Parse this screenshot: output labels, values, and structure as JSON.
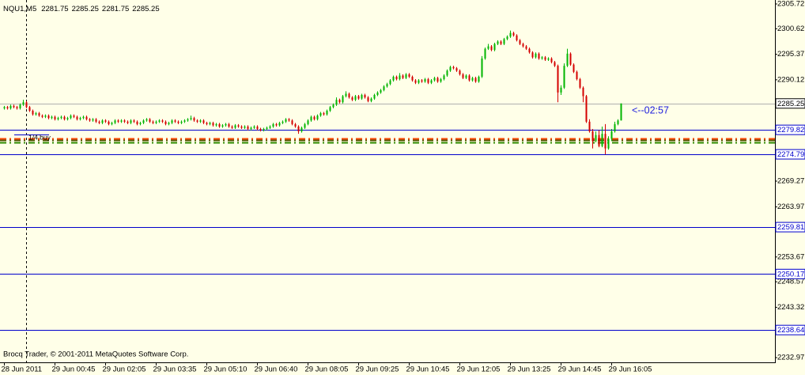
{
  "chart_data": {
    "type": "candlestick",
    "symbol": "NQU1,M5",
    "copyright": "Brocq Trader, © 2001-2011 MetaQuotes Software Corp.",
    "annotations": [
      "1/4 buy",
      "<--02:57"
    ],
    "ylim": [
      2232.97,
      2305.72
    ],
    "yticks": [
      2305.72,
      2300.62,
      2295.37,
      2290.12,
      2269.27,
      2263.97,
      2253.67,
      2248.57,
      2243.32,
      2232.97
    ],
    "levels": [
      2279.82,
      2274.79,
      2259.81,
      2250.17,
      2238.64
    ],
    "level_color": "#0000cc",
    "pivot_levels": [
      {
        "value": 2278.1,
        "color": "#ff4500"
      },
      {
        "value": 2277.75,
        "color": "#555500"
      },
      {
        "value": 2277.3,
        "color": "#2e8b00"
      }
    ],
    "up_color": "#00b400",
    "down_color": "#d40000",
    "categories": [
      "28 Jun 2011",
      null,
      null,
      null,
      null,
      null,
      null,
      null,
      null,
      null,
      null,
      null,
      null,
      null,
      null,
      null,
      "29 Jun 00:45",
      null,
      null,
      null,
      null,
      null,
      null,
      null,
      null,
      null,
      null,
      null,
      null,
      null,
      null,
      null,
      "29 Jun 02:05",
      null,
      null,
      null,
      null,
      null,
      null,
      null,
      null,
      null,
      null,
      null,
      null,
      null,
      null,
      null,
      "29 Jun 03:35",
      null,
      null,
      null,
      null,
      null,
      null,
      null,
      null,
      null,
      null,
      null,
      null,
      null,
      null,
      null,
      "29 Jun 05:10",
      null,
      null,
      null,
      null,
      null,
      null,
      null,
      null,
      null,
      null,
      null,
      null,
      null,
      null,
      null,
      "29 Jun 06:40",
      null,
      null,
      null,
      null,
      null,
      null,
      null,
      null,
      null,
      null,
      null,
      null,
      null,
      null,
      null,
      "29 Jun 08:05",
      null,
      null,
      null,
      null,
      null,
      null,
      null,
      null,
      null,
      null,
      null,
      null,
      null,
      null,
      null,
      "29 Jun 09:25",
      null,
      null,
      null,
      null,
      null,
      null,
      null,
      null,
      null,
      null,
      null,
      null,
      null,
      null,
      null,
      "29 Jun 10:45",
      null,
      null,
      null,
      null,
      null,
      null,
      null,
      null,
      null,
      null,
      null,
      null,
      null,
      null,
      null,
      "29 Jun 12:05",
      null,
      null,
      null,
      null,
      null,
      null,
      null,
      null,
      null,
      null,
      null,
      null,
      null,
      null,
      null,
      "29 Jun 13:25",
      null,
      null,
      null,
      null,
      null,
      null,
      null,
      null,
      null,
      null,
      null,
      null,
      null,
      null,
      null,
      "29 Jun 14:45",
      null,
      null,
      null,
      null,
      null,
      null,
      null,
      null,
      null,
      null,
      null,
      null,
      null,
      null,
      null,
      "29 Jun 16:05",
      null,
      null,
      null
    ],
    "ohlc": [
      [
        2284.25,
        2284.75,
        2284.0,
        2284.5
      ],
      [
        2284.5,
        2284.75,
        2284.0,
        2284.25
      ],
      [
        2284.25,
        2285.0,
        2284.0,
        2284.75
      ],
      [
        2284.75,
        2285.0,
        2284.25,
        2284.5
      ],
      [
        2284.5,
        2284.75,
        2284.0,
        2284.25
      ],
      [
        2284.25,
        2285.25,
        2284.0,
        2285.0
      ],
      [
        2285.0,
        2286.0,
        2284.75,
        2285.5
      ],
      [
        2285.5,
        2285.75,
        2284.25,
        2284.5
      ],
      [
        2284.5,
        2284.75,
        2283.5,
        2283.75
      ],
      [
        2283.75,
        2284.0,
        2282.75,
        2283.0
      ],
      [
        2283.0,
        2283.5,
        2282.75,
        2283.25
      ],
      [
        2283.25,
        2283.5,
        2282.5,
        2282.75
      ],
      [
        2282.75,
        2283.0,
        2282.25,
        2282.5
      ],
      [
        2282.5,
        2283.0,
        2282.25,
        2282.75
      ],
      [
        2282.75,
        2283.0,
        2282.0,
        2282.25
      ],
      [
        2282.25,
        2282.75,
        2282.0,
        2282.5
      ],
      [
        2282.5,
        2282.75,
        2281.75,
        2282.0
      ],
      [
        2282.0,
        2282.5,
        2281.75,
        2282.25
      ],
      [
        2282.25,
        2282.75,
        2282.0,
        2282.5
      ],
      [
        2282.5,
        2282.75,
        2281.75,
        2282.0
      ],
      [
        2282.0,
        2282.5,
        2281.75,
        2282.25
      ],
      [
        2282.25,
        2283.0,
        2282.0,
        2282.75
      ],
      [
        2282.75,
        2283.0,
        2282.25,
        2282.5
      ],
      [
        2282.5,
        2282.75,
        2281.75,
        2282.0
      ],
      [
        2282.0,
        2282.5,
        2281.75,
        2282.25
      ],
      [
        2282.25,
        2282.75,
        2282.0,
        2282.5
      ],
      [
        2282.5,
        2282.75,
        2281.75,
        2282.0
      ],
      [
        2282.0,
        2282.25,
        2281.5,
        2281.75
      ],
      [
        2281.75,
        2282.25,
        2281.5,
        2282.0
      ],
      [
        2282.0,
        2282.25,
        2281.25,
        2281.5
      ],
      [
        2281.5,
        2281.75,
        2281.0,
        2281.25
      ],
      [
        2281.25,
        2282.0,
        2281.0,
        2281.75
      ],
      [
        2281.75,
        2282.0,
        2281.25,
        2281.5
      ],
      [
        2281.5,
        2281.75,
        2280.75,
        2281.0
      ],
      [
        2281.0,
        2281.5,
        2280.75,
        2281.25
      ],
      [
        2281.25,
        2282.0,
        2281.0,
        2281.75
      ],
      [
        2281.75,
        2282.0,
        2281.25,
        2281.5
      ],
      [
        2281.5,
        2282.0,
        2281.25,
        2281.75
      ],
      [
        2281.75,
        2282.0,
        2281.25,
        2281.5
      ],
      [
        2281.5,
        2281.75,
        2281.0,
        2281.25
      ],
      [
        2281.25,
        2282.0,
        2281.0,
        2281.75
      ],
      [
        2281.75,
        2282.0,
        2281.25,
        2281.5
      ],
      [
        2281.5,
        2281.75,
        2280.75,
        2281.0
      ],
      [
        2281.0,
        2281.5,
        2280.75,
        2281.25
      ],
      [
        2281.25,
        2282.0,
        2281.0,
        2281.75
      ],
      [
        2281.75,
        2282.25,
        2281.5,
        2282.0
      ],
      [
        2282.0,
        2282.25,
        2281.25,
        2281.5
      ],
      [
        2281.5,
        2281.75,
        2281.0,
        2281.25
      ],
      [
        2281.25,
        2281.75,
        2281.0,
        2281.5
      ],
      [
        2281.5,
        2282.0,
        2281.25,
        2281.75
      ],
      [
        2281.75,
        2282.0,
        2281.25,
        2281.5
      ],
      [
        2281.5,
        2281.75,
        2280.75,
        2281.0
      ],
      [
        2281.0,
        2281.5,
        2280.75,
        2281.25
      ],
      [
        2281.25,
        2282.0,
        2281.0,
        2281.75
      ],
      [
        2281.75,
        2282.0,
        2281.25,
        2281.5
      ],
      [
        2281.5,
        2281.75,
        2281.0,
        2281.25
      ],
      [
        2281.25,
        2281.75,
        2281.0,
        2281.5
      ],
      [
        2281.5,
        2282.0,
        2281.25,
        2281.75
      ],
      [
        2281.75,
        2282.25,
        2281.5,
        2282.0
      ],
      [
        2282.0,
        2282.75,
        2281.75,
        2282.25
      ],
      [
        2282.25,
        2282.5,
        2281.5,
        2281.75
      ],
      [
        2281.75,
        2282.0,
        2281.25,
        2281.5
      ],
      [
        2281.5,
        2282.0,
        2281.25,
        2281.75
      ],
      [
        2281.75,
        2282.0,
        2281.0,
        2281.25
      ],
      [
        2281.25,
        2281.5,
        2280.75,
        2281.0
      ],
      [
        2281.0,
        2281.5,
        2280.75,
        2281.25
      ],
      [
        2281.25,
        2281.5,
        2280.5,
        2280.75
      ],
      [
        2280.75,
        2281.25,
        2280.5,
        2281.0
      ],
      [
        2281.0,
        2281.25,
        2280.25,
        2280.5
      ],
      [
        2280.5,
        2281.0,
        2280.25,
        2280.75
      ],
      [
        2280.75,
        2281.25,
        2280.5,
        2281.0
      ],
      [
        2281.0,
        2281.25,
        2280.25,
        2280.5
      ],
      [
        2280.5,
        2280.75,
        2280.0,
        2280.25
      ],
      [
        2280.25,
        2281.0,
        2280.0,
        2280.75
      ],
      [
        2280.75,
        2281.0,
        2280.25,
        2280.5
      ],
      [
        2280.5,
        2280.75,
        2280.0,
        2280.25
      ],
      [
        2280.25,
        2280.75,
        2280.0,
        2280.5
      ],
      [
        2280.5,
        2280.75,
        2279.75,
        2280.0
      ],
      [
        2280.0,
        2280.5,
        2279.75,
        2280.25
      ],
      [
        2280.25,
        2280.75,
        2280.0,
        2280.5
      ],
      [
        2280.5,
        2280.75,
        2279.75,
        2280.0
      ],
      [
        2280.0,
        2280.25,
        2279.5,
        2279.75
      ],
      [
        2279.75,
        2280.25,
        2279.5,
        2280.0
      ],
      [
        2280.0,
        2280.5,
        2279.75,
        2280.25
      ],
      [
        2280.25,
        2280.75,
        2280.0,
        2280.5
      ],
      [
        2280.5,
        2281.25,
        2280.25,
        2281.0
      ],
      [
        2281.0,
        2281.25,
        2280.5,
        2280.75
      ],
      [
        2280.75,
        2281.5,
        2280.5,
        2281.25
      ],
      [
        2281.25,
        2281.75,
        2281.0,
        2281.5
      ],
      [
        2281.5,
        2282.25,
        2281.25,
        2282.0
      ],
      [
        2282.0,
        2282.25,
        2281.5,
        2281.75
      ],
      [
        2281.75,
        2282.0,
        2280.75,
        2281.0
      ],
      [
        2281.0,
        2281.25,
        2280.25,
        2280.5
      ],
      [
        2280.5,
        2280.75,
        2279.0,
        2279.5
      ],
      [
        2279.5,
        2280.5,
        2279.25,
        2280.25
      ],
      [
        2280.25,
        2281.25,
        2280.0,
        2281.0
      ],
      [
        2281.0,
        2282.0,
        2280.75,
        2281.75
      ],
      [
        2281.75,
        2282.75,
        2281.5,
        2282.5
      ],
      [
        2282.5,
        2282.75,
        2281.75,
        2282.0
      ],
      [
        2282.0,
        2283.0,
        2281.75,
        2282.75
      ],
      [
        2282.75,
        2283.5,
        2282.5,
        2283.25
      ],
      [
        2283.25,
        2283.5,
        2282.75,
        2283.0
      ],
      [
        2283.0,
        2284.0,
        2282.75,
        2283.75
      ],
      [
        2283.75,
        2284.75,
        2283.5,
        2284.5
      ],
      [
        2284.5,
        2285.25,
        2284.25,
        2285.0
      ],
      [
        2285.0,
        2286.5,
        2284.75,
        2286.0
      ],
      [
        2286.0,
        2286.25,
        2285.25,
        2285.5
      ],
      [
        2285.5,
        2287.0,
        2285.25,
        2286.75
      ],
      [
        2286.75,
        2287.75,
        2286.5,
        2287.25
      ],
      [
        2287.25,
        2287.5,
        2286.25,
        2286.5
      ],
      [
        2286.5,
        2286.75,
        2285.75,
        2286.0
      ],
      [
        2286.0,
        2287.0,
        2285.75,
        2286.75
      ],
      [
        2286.75,
        2287.0,
        2286.0,
        2286.25
      ],
      [
        2286.25,
        2287.25,
        2286.0,
        2287.0
      ],
      [
        2287.0,
        2287.25,
        2286.25,
        2286.5
      ],
      [
        2286.5,
        2286.75,
        2285.5,
        2285.75
      ],
      [
        2285.75,
        2286.5,
        2285.5,
        2286.25
      ],
      [
        2286.25,
        2287.25,
        2286.0,
        2287.0
      ],
      [
        2287.0,
        2287.75,
        2286.75,
        2287.5
      ],
      [
        2287.5,
        2288.25,
        2287.25,
        2288.0
      ],
      [
        2288.0,
        2289.0,
        2287.75,
        2288.75
      ],
      [
        2288.75,
        2289.5,
        2288.5,
        2289.25
      ],
      [
        2289.25,
        2290.25,
        2289.0,
        2290.0
      ],
      [
        2290.0,
        2291.0,
        2289.75,
        2290.75
      ],
      [
        2290.75,
        2291.0,
        2290.0,
        2290.25
      ],
      [
        2290.25,
        2291.5,
        2290.0,
        2291.0
      ],
      [
        2291.0,
        2291.25,
        2290.25,
        2290.5
      ],
      [
        2290.5,
        2291.5,
        2290.25,
        2291.25
      ],
      [
        2291.25,
        2291.5,
        2290.5,
        2290.75
      ],
      [
        2290.75,
        2291.0,
        2289.75,
        2290.0
      ],
      [
        2290.0,
        2290.25,
        2289.25,
        2289.5
      ],
      [
        2289.5,
        2290.25,
        2289.25,
        2290.0
      ],
      [
        2290.0,
        2290.25,
        2289.5,
        2289.75
      ],
      [
        2289.75,
        2290.5,
        2289.5,
        2290.25
      ],
      [
        2290.25,
        2290.5,
        2289.25,
        2289.5
      ],
      [
        2289.5,
        2290.25,
        2289.25,
        2290.0
      ],
      [
        2290.0,
        2290.75,
        2289.75,
        2290.5
      ],
      [
        2290.5,
        2290.75,
        2289.5,
        2289.75
      ],
      [
        2289.75,
        2290.5,
        2289.5,
        2290.25
      ],
      [
        2290.25,
        2291.25,
        2290.0,
        2291.0
      ],
      [
        2291.0,
        2292.25,
        2290.75,
        2292.0
      ],
      [
        2292.0,
        2293.0,
        2291.75,
        2292.75
      ],
      [
        2292.75,
        2293.0,
        2292.25,
        2292.5
      ],
      [
        2292.5,
        2292.75,
        2291.75,
        2292.0
      ],
      [
        2292.0,
        2292.25,
        2291.0,
        2291.25
      ],
      [
        2291.25,
        2291.5,
        2290.25,
        2290.5
      ],
      [
        2290.5,
        2291.25,
        2290.25,
        2291.0
      ],
      [
        2291.0,
        2291.25,
        2289.75,
        2290.0
      ],
      [
        2290.0,
        2290.75,
        2289.75,
        2290.5
      ],
      [
        2290.5,
        2290.75,
        2289.5,
        2289.75
      ],
      [
        2289.75,
        2291.0,
        2289.5,
        2290.75
      ],
      [
        2290.75,
        2295.0,
        2290.5,
        2294.5
      ],
      [
        2294.5,
        2296.75,
        2294.25,
        2296.5
      ],
      [
        2296.5,
        2297.5,
        2296.25,
        2297.0
      ],
      [
        2297.0,
        2297.25,
        2296.0,
        2296.25
      ],
      [
        2296.25,
        2297.75,
        2296.0,
        2297.5
      ],
      [
        2297.5,
        2298.25,
        2297.25,
        2298.0
      ],
      [
        2298.0,
        2298.25,
        2297.25,
        2297.5
      ],
      [
        2297.5,
        2298.75,
        2297.25,
        2298.5
      ],
      [
        2298.5,
        2299.25,
        2298.25,
        2299.0
      ],
      [
        2299.0,
        2300.25,
        2298.75,
        2299.75
      ],
      [
        2299.75,
        2300.0,
        2299.0,
        2299.25
      ],
      [
        2299.25,
        2299.5,
        2298.0,
        2298.25
      ],
      [
        2298.25,
        2298.5,
        2297.25,
        2297.5
      ],
      [
        2297.5,
        2297.75,
        2296.75,
        2297.0
      ],
      [
        2297.0,
        2297.25,
        2296.25,
        2296.5
      ],
      [
        2296.5,
        2296.75,
        2295.5,
        2295.75
      ],
      [
        2295.75,
        2296.0,
        2294.5,
        2294.75
      ],
      [
        2294.75,
        2295.75,
        2294.5,
        2295.5
      ],
      [
        2295.5,
        2295.75,
        2294.25,
        2294.5
      ],
      [
        2294.5,
        2295.0,
        2294.25,
        2294.75
      ],
      [
        2294.75,
        2295.0,
        2294.0,
        2294.25
      ],
      [
        2294.25,
        2294.75,
        2294.0,
        2294.5
      ],
      [
        2294.5,
        2294.75,
        2293.5,
        2293.75
      ],
      [
        2293.75,
        2294.0,
        2292.75,
        2293.0
      ],
      [
        2293.0,
        2293.25,
        2285.5,
        2287.5
      ],
      [
        2287.5,
        2289.0,
        2287.0,
        2288.5
      ],
      [
        2288.5,
        2293.5,
        2288.25,
        2293.0
      ],
      [
        2293.0,
        2296.5,
        2292.75,
        2295.5
      ],
      [
        2295.5,
        2295.75,
        2293.0,
        2293.25
      ],
      [
        2293.25,
        2293.5,
        2291.5,
        2291.75
      ],
      [
        2291.75,
        2292.0,
        2290.0,
        2290.25
      ],
      [
        2290.25,
        2290.5,
        2288.25,
        2288.5
      ],
      [
        2288.5,
        2288.75,
        2285.5,
        2286.75
      ],
      [
        2286.75,
        2287.0,
        2281.25,
        2281.5
      ],
      [
        2281.5,
        2282.0,
        2279.25,
        2279.5
      ],
      [
        2279.5,
        2280.0,
        2276.0,
        2277.5
      ],
      [
        2277.5,
        2279.5,
        2277.25,
        2278.75
      ],
      [
        2278.75,
        2279.75,
        2276.25,
        2276.5
      ],
      [
        2276.5,
        2280.5,
        2276.25,
        2279.0
      ],
      [
        2279.0,
        2281.0,
        2274.75,
        2276.0
      ],
      [
        2276.0,
        2278.5,
        2275.75,
        2278.0
      ],
      [
        2278.0,
        2280.0,
        2277.5,
        2279.5
      ],
      [
        2279.5,
        2281.5,
        2279.25,
        2281.0
      ],
      [
        2281.0,
        2282.0,
        2280.75,
        2281.75
      ],
      [
        2281.75,
        2285.25,
        2281.75,
        2285.25
      ]
    ]
  }
}
